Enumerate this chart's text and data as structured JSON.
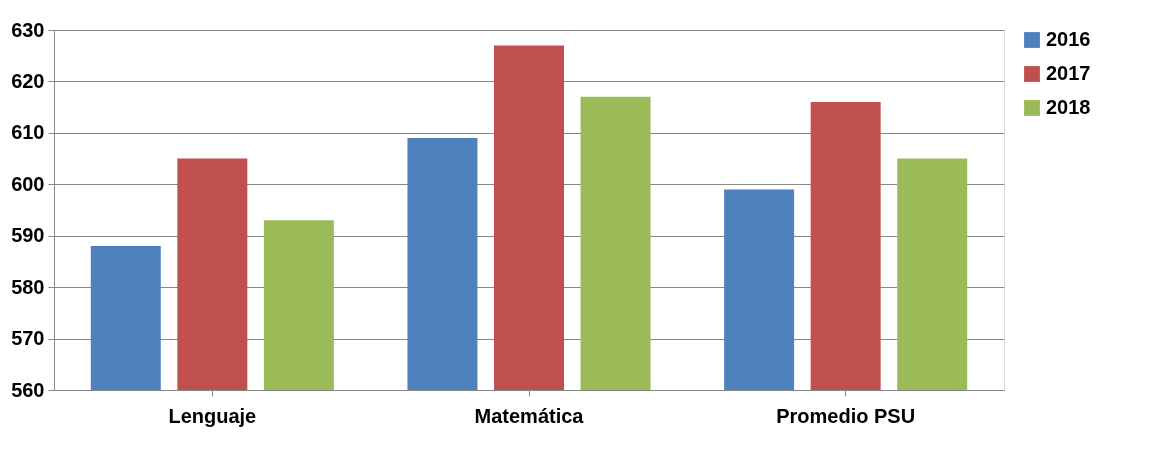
{
  "chart_data": {
    "type": "bar",
    "categories": [
      "Lenguaje",
      "Matemática",
      "Promedio PSU"
    ],
    "series": [
      {
        "name": "2016",
        "color": "#4f81bd",
        "values": [
          588,
          609,
          599
        ]
      },
      {
        "name": "2017",
        "color": "#c0504d",
        "values": [
          605,
          627,
          616
        ]
      },
      {
        "name": "2018",
        "color": "#9bbb59",
        "values": [
          593,
          617,
          605
        ]
      }
    ],
    "ylim": [
      560,
      630
    ],
    "yticks": [
      560,
      570,
      580,
      590,
      600,
      610,
      620,
      630
    ],
    "grid": "y",
    "legend": "right"
  }
}
